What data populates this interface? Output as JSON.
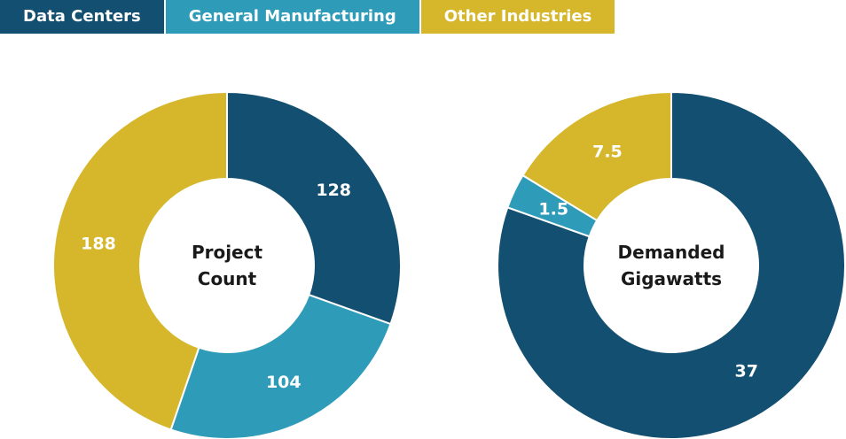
{
  "chart_data": [
    {
      "type": "donut",
      "title": "Project Count",
      "categories": [
        "Data Centers",
        "General Manufacturing",
        "Other Industries"
      ],
      "values": [
        128,
        104,
        188
      ],
      "colors": [
        "#134f70",
        "#2e9bb8",
        "#d6b72b"
      ]
    },
    {
      "type": "donut",
      "title": "Demanded Gigawatts",
      "categories": [
        "Data Centers",
        "General Manufacturing",
        "Other Industries"
      ],
      "values": [
        37,
        1.5,
        7.5
      ],
      "colors": [
        "#134f70",
        "#2e9bb8",
        "#d6b72b"
      ]
    }
  ]
}
